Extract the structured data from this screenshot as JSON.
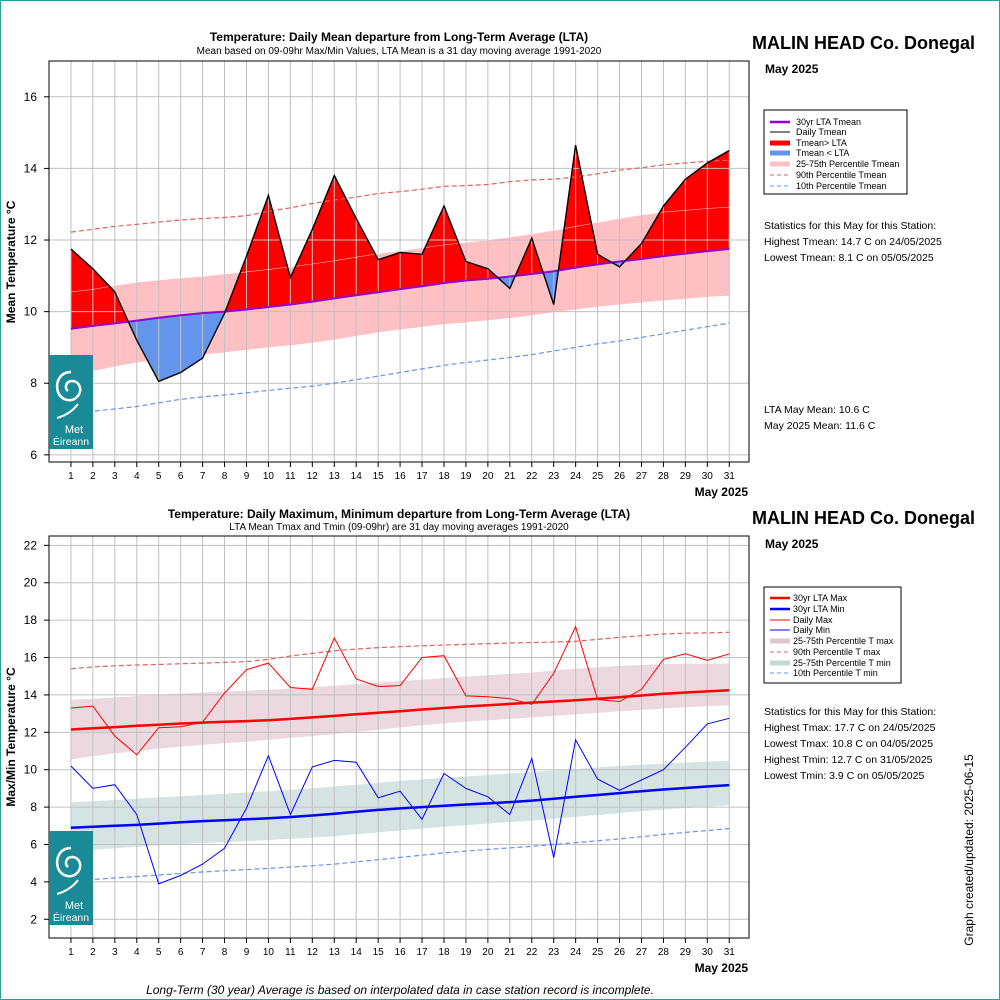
{
  "station": "MALIN HEAD Co. Donegal",
  "month": "May 2025",
  "updated": "Graph created/updated:  2025-06-15",
  "footnote": "Long-Term (30 year) Average is based on interpolated data in case station record is incomplete.",
  "logo": {
    "line1": "Met",
    "line2": "Éireann"
  },
  "colors": {
    "warm": "#ff0000",
    "cool": "#6495ed",
    "lta": "#9400d3",
    "pink_band": "#ffc0c4",
    "max": "#ff0000",
    "min": "#0000ff",
    "max_band": "#ecd9df",
    "min_band": "#d5e4e2",
    "logo": "#1a8a96"
  },
  "top": {
    "title": "Temperature: Daily Mean departure from Long-Term Average (LTA)",
    "subtitle": "Mean based on 09-09hr Max/Min Values, LTA Mean is a 31 day moving average 1991-2020",
    "ylabel": "Mean Temperature °C",
    "xlabel": "May 2025",
    "legend": [
      "30yr LTA Tmean",
      "Daily Tmean",
      "Tmean> LTA",
      "Tmean < LTA",
      "25-75th Percentile Tmean",
      "90th Percentile Tmean",
      "10th Percentile Tmean"
    ],
    "stats_header": "Statistics for this May for this Station:",
    "stats": [
      "Highest Tmean: 14.7 C on 24/05/2025",
      "Lowest Tmean: 8.1 C on 05/05/2025"
    ],
    "means": [
      "LTA May Mean: 10.6 C",
      "May 2025 Mean: 11.6 C"
    ]
  },
  "bottom": {
    "title": "Temperature: Daily Maximum, Minimum departure from Long-Term Average (LTA)",
    "subtitle": "LTA Mean Tmax and Tmin (09-09hr) are 31 day moving averages 1991-2020",
    "ylabel": "Max/Min Temperature °C",
    "xlabel": "May 2025",
    "legend": [
      "30yr LTA Max",
      "30yr LTA Min",
      "Daily Max",
      "Daily Min",
      "25-75th Percentile T max",
      "90th Percentile T max",
      "25-75th Percentile T min",
      "10th Percentile T min"
    ],
    "stats_header": "Statistics for this May for this Station:",
    "stats": [
      "Highest Tmax: 17.7 C on 24/05/2025",
      "Lowest Tmax: 10.8 C on 04/05/2025",
      "Highest Tmin: 12.7 C on 31/05/2025",
      "Lowest Tmin: 3.9 C on 05/05/2025"
    ]
  },
  "chart_data": [
    {
      "type": "area",
      "title": "Temperature: Daily Mean departure from Long-Term Average (LTA)",
      "xlabel": "May 2025",
      "ylabel": "Mean Temperature °C",
      "xlim": [
        0,
        31.9
      ],
      "ylim": [
        5.8,
        17
      ],
      "x": [
        1,
        2,
        3,
        4,
        5,
        6,
        7,
        8,
        9,
        10,
        11,
        12,
        13,
        14,
        15,
        16,
        17,
        18,
        19,
        20,
        21,
        22,
        23,
        24,
        25,
        26,
        27,
        28,
        29,
        30,
        31
      ],
      "yticks": [
        6,
        8,
        10,
        12,
        14,
        16
      ],
      "grid": true,
      "legend_position": "right",
      "series": [
        {
          "name": "Daily Tmean",
          "values": [
            11.75,
            11.2,
            10.55,
            9.2,
            8.05,
            8.3,
            8.7,
            9.95,
            11.55,
            13.25,
            10.95,
            12.3,
            13.8,
            12.6,
            11.45,
            11.65,
            11.6,
            12.95,
            11.4,
            11.2,
            10.65,
            12.05,
            10.2,
            14.65,
            11.6,
            11.25,
            11.9,
            12.95,
            13.7,
            14.15,
            14.5
          ]
        },
        {
          "name": "30yr LTA Tmean",
          "values": [
            9.52,
            9.6,
            9.67,
            9.75,
            9.83,
            9.9,
            9.96,
            10.0,
            10.06,
            10.13,
            10.2,
            10.28,
            10.37,
            10.46,
            10.54,
            10.63,
            10.71,
            10.8,
            10.87,
            10.92,
            10.98,
            11.05,
            11.13,
            11.23,
            11.32,
            11.4,
            11.47,
            11.55,
            11.62,
            11.69,
            11.75
          ]
        },
        {
          "name": "25-75th Percentile Tmean",
          "lower": [
            8.2,
            8.34,
            8.47,
            8.58,
            8.66,
            8.73,
            8.8,
            8.86,
            8.93,
            9.0,
            9.06,
            9.13,
            9.22,
            9.32,
            9.42,
            9.5,
            9.58,
            9.65,
            9.7,
            9.76,
            9.82,
            9.9,
            9.98,
            10.06,
            10.14,
            10.2,
            10.26,
            10.31,
            10.36,
            10.41,
            10.45
          ],
          "upper": [
            10.55,
            10.62,
            10.73,
            10.82,
            10.88,
            10.94,
            10.98,
            11.05,
            11.11,
            11.18,
            11.25,
            11.33,
            11.42,
            11.52,
            11.62,
            11.7,
            11.78,
            11.86,
            11.93,
            12.0,
            12.08,
            12.17,
            12.27,
            12.38,
            12.49,
            12.6,
            12.7,
            12.78,
            12.83,
            12.88,
            12.92
          ]
        },
        {
          "name": "90th Percentile Tmean",
          "values": [
            12.22,
            12.3,
            12.38,
            12.44,
            12.5,
            12.56,
            12.6,
            12.63,
            12.68,
            12.8,
            12.9,
            13.02,
            13.12,
            13.2,
            13.3,
            13.35,
            13.42,
            13.5,
            13.52,
            13.55,
            13.63,
            13.68,
            13.7,
            13.76,
            13.85,
            13.95,
            14.02,
            14.1,
            14.15,
            14.2,
            14.23
          ]
        },
        {
          "name": "10th Percentile Tmean",
          "values": [
            7.15,
            7.22,
            7.28,
            7.35,
            7.45,
            7.55,
            7.62,
            7.67,
            7.73,
            7.8,
            7.86,
            7.92,
            8.0,
            8.1,
            8.2,
            8.3,
            8.4,
            8.5,
            8.58,
            8.65,
            8.72,
            8.8,
            8.9,
            9.0,
            9.1,
            9.18,
            9.28,
            9.38,
            9.48,
            9.58,
            9.68
          ]
        }
      ]
    },
    {
      "type": "line",
      "title": "Temperature: Daily Maximum, Minimum departure from Long-Term Average (LTA)",
      "xlabel": "May 2025",
      "ylabel": "Max/Min Temperature °C",
      "xlim": [
        0,
        31.9
      ],
      "ylim": [
        1,
        22.5
      ],
      "x": [
        1,
        2,
        3,
        4,
        5,
        6,
        7,
        8,
        9,
        10,
        11,
        12,
        13,
        14,
        15,
        16,
        17,
        18,
        19,
        20,
        21,
        22,
        23,
        24,
        25,
        26,
        27,
        28,
        29,
        30,
        31
      ],
      "yticks": [
        2,
        4,
        6,
        8,
        10,
        12,
        14,
        16,
        18,
        20,
        22
      ],
      "grid": true,
      "legend_position": "right",
      "series": [
        {
          "name": "Daily Max",
          "values": [
            13.3,
            13.4,
            11.8,
            10.8,
            12.25,
            12.3,
            12.55,
            14.1,
            15.35,
            15.7,
            14.4,
            14.3,
            17.05,
            14.85,
            14.45,
            14.5,
            16.0,
            16.1,
            13.95,
            13.9,
            13.8,
            13.5,
            15.15,
            17.65,
            13.75,
            13.65,
            14.3,
            15.9,
            16.2,
            15.85,
            16.2
          ]
        },
        {
          "name": "Daily Min",
          "values": [
            10.2,
            9.0,
            9.2,
            7.6,
            3.9,
            4.35,
            4.95,
            5.8,
            7.95,
            10.75,
            7.6,
            10.15,
            10.5,
            10.4,
            8.5,
            8.85,
            7.35,
            9.8,
            9.0,
            8.55,
            7.6,
            10.6,
            5.3,
            11.6,
            9.5,
            8.9,
            9.45,
            10.0,
            11.2,
            12.45,
            12.75
          ]
        },
        {
          "name": "30yr LTA Max",
          "values": [
            12.15,
            12.22,
            12.28,
            12.35,
            12.41,
            12.47,
            12.52,
            12.57,
            12.6,
            12.65,
            12.72,
            12.8,
            12.88,
            12.97,
            13.05,
            13.13,
            13.22,
            13.3,
            13.38,
            13.45,
            13.52,
            13.59,
            13.65,
            13.72,
            13.8,
            13.88,
            13.97,
            14.06,
            14.13,
            14.19,
            14.25
          ]
        },
        {
          "name": "30yr LTA Min",
          "values": [
            6.9,
            6.95,
            7.0,
            7.05,
            7.12,
            7.19,
            7.25,
            7.3,
            7.35,
            7.4,
            7.47,
            7.55,
            7.65,
            7.75,
            7.85,
            7.93,
            8.0,
            8.07,
            8.14,
            8.2,
            8.27,
            8.35,
            8.45,
            8.55,
            8.65,
            8.75,
            8.85,
            8.94,
            9.02,
            9.1,
            9.18
          ]
        },
        {
          "name": "25-75th Percentile T max",
          "lower": [
            10.55,
            10.72,
            10.87,
            11.0,
            11.12,
            11.23,
            11.33,
            11.42,
            11.5,
            11.6,
            11.7,
            11.8,
            11.9,
            12.02,
            12.14,
            12.26,
            12.38,
            12.48,
            12.57,
            12.64,
            12.72,
            12.8,
            12.88,
            12.96,
            13.04,
            13.12,
            13.2,
            13.27,
            13.34,
            13.4,
            13.45
          ],
          "upper": [
            13.75,
            13.8,
            13.87,
            13.94,
            14.0,
            14.07,
            14.13,
            14.18,
            14.23,
            14.28,
            14.35,
            14.42,
            14.5,
            14.58,
            14.66,
            14.74,
            14.82,
            14.9,
            14.98,
            15.05,
            15.12,
            15.2,
            15.3,
            15.4,
            15.48,
            15.55,
            15.6,
            15.64,
            15.66,
            15.67,
            15.68
          ]
        },
        {
          "name": "90th Percentile T max",
          "values": [
            15.4,
            15.5,
            15.56,
            15.6,
            15.63,
            15.67,
            15.7,
            15.74,
            15.78,
            15.9,
            16.08,
            16.22,
            16.36,
            16.45,
            16.53,
            16.58,
            16.63,
            16.67,
            16.7,
            16.74,
            16.78,
            16.8,
            16.83,
            16.87,
            16.97,
            17.08,
            17.17,
            17.26,
            17.3,
            17.32,
            17.35
          ]
        },
        {
          "name": "25-75th Percentile T min",
          "lower": [
            5.65,
            5.72,
            5.8,
            5.88,
            5.95,
            6.02,
            6.08,
            6.13,
            6.18,
            6.24,
            6.3,
            6.37,
            6.45,
            6.55,
            6.65,
            6.75,
            6.85,
            6.95,
            7.04,
            7.12,
            7.2,
            7.28,
            7.38,
            7.48,
            7.58,
            7.68,
            7.78,
            7.87,
            7.95,
            8.03,
            8.1
          ],
          "upper": [
            8.25,
            8.32,
            8.38,
            8.45,
            8.52,
            8.58,
            8.65,
            8.72,
            8.78,
            8.85,
            8.92,
            9.0,
            9.1,
            9.2,
            9.3,
            9.4,
            9.48,
            9.56,
            9.64,
            9.72,
            9.8,
            9.88,
            9.96,
            10.04,
            10.12,
            10.2,
            10.27,
            10.33,
            10.38,
            10.43,
            10.48
          ]
        },
        {
          "name": "10th Percentile T min",
          "values": [
            4.05,
            4.13,
            4.21,
            4.29,
            4.37,
            4.45,
            4.53,
            4.6,
            4.66,
            4.72,
            4.79,
            4.86,
            4.95,
            5.07,
            5.19,
            5.31,
            5.43,
            5.55,
            5.65,
            5.74,
            5.82,
            5.9,
            6.0,
            6.1,
            6.2,
            6.3,
            6.42,
            6.54,
            6.65,
            6.75,
            6.85
          ]
        }
      ]
    }
  ]
}
